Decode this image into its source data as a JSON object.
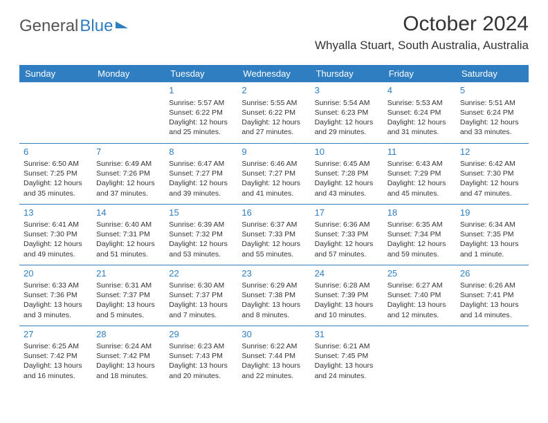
{
  "logo": {
    "text1": "General",
    "text2": "Blue"
  },
  "title": "October 2024",
  "location": "Whyalla Stuart, South Australia, Australia",
  "weekdays": [
    "Sunday",
    "Monday",
    "Tuesday",
    "Wednesday",
    "Thursday",
    "Friday",
    "Saturday"
  ],
  "colors": {
    "header_bg": "#2f7ec1",
    "header_text": "#ffffff",
    "daynum": "#2f7ec1",
    "body_text": "#333333",
    "divider": "#2f7ec1"
  },
  "weeks": [
    [
      null,
      null,
      {
        "n": "1",
        "sr": "Sunrise: 5:57 AM",
        "ss": "Sunset: 6:22 PM",
        "dl": "Daylight: 12 hours and 25 minutes."
      },
      {
        "n": "2",
        "sr": "Sunrise: 5:55 AM",
        "ss": "Sunset: 6:22 PM",
        "dl": "Daylight: 12 hours and 27 minutes."
      },
      {
        "n": "3",
        "sr": "Sunrise: 5:54 AM",
        "ss": "Sunset: 6:23 PM",
        "dl": "Daylight: 12 hours and 29 minutes."
      },
      {
        "n": "4",
        "sr": "Sunrise: 5:53 AM",
        "ss": "Sunset: 6:24 PM",
        "dl": "Daylight: 12 hours and 31 minutes."
      },
      {
        "n": "5",
        "sr": "Sunrise: 5:51 AM",
        "ss": "Sunset: 6:24 PM",
        "dl": "Daylight: 12 hours and 33 minutes."
      }
    ],
    [
      {
        "n": "6",
        "sr": "Sunrise: 6:50 AM",
        "ss": "Sunset: 7:25 PM",
        "dl": "Daylight: 12 hours and 35 minutes."
      },
      {
        "n": "7",
        "sr": "Sunrise: 6:49 AM",
        "ss": "Sunset: 7:26 PM",
        "dl": "Daylight: 12 hours and 37 minutes."
      },
      {
        "n": "8",
        "sr": "Sunrise: 6:47 AM",
        "ss": "Sunset: 7:27 PM",
        "dl": "Daylight: 12 hours and 39 minutes."
      },
      {
        "n": "9",
        "sr": "Sunrise: 6:46 AM",
        "ss": "Sunset: 7:27 PM",
        "dl": "Daylight: 12 hours and 41 minutes."
      },
      {
        "n": "10",
        "sr": "Sunrise: 6:45 AM",
        "ss": "Sunset: 7:28 PM",
        "dl": "Daylight: 12 hours and 43 minutes."
      },
      {
        "n": "11",
        "sr": "Sunrise: 6:43 AM",
        "ss": "Sunset: 7:29 PM",
        "dl": "Daylight: 12 hours and 45 minutes."
      },
      {
        "n": "12",
        "sr": "Sunrise: 6:42 AM",
        "ss": "Sunset: 7:30 PM",
        "dl": "Daylight: 12 hours and 47 minutes."
      }
    ],
    [
      {
        "n": "13",
        "sr": "Sunrise: 6:41 AM",
        "ss": "Sunset: 7:30 PM",
        "dl": "Daylight: 12 hours and 49 minutes."
      },
      {
        "n": "14",
        "sr": "Sunrise: 6:40 AM",
        "ss": "Sunset: 7:31 PM",
        "dl": "Daylight: 12 hours and 51 minutes."
      },
      {
        "n": "15",
        "sr": "Sunrise: 6:39 AM",
        "ss": "Sunset: 7:32 PM",
        "dl": "Daylight: 12 hours and 53 minutes."
      },
      {
        "n": "16",
        "sr": "Sunrise: 6:37 AM",
        "ss": "Sunset: 7:33 PM",
        "dl": "Daylight: 12 hours and 55 minutes."
      },
      {
        "n": "17",
        "sr": "Sunrise: 6:36 AM",
        "ss": "Sunset: 7:33 PM",
        "dl": "Daylight: 12 hours and 57 minutes."
      },
      {
        "n": "18",
        "sr": "Sunrise: 6:35 AM",
        "ss": "Sunset: 7:34 PM",
        "dl": "Daylight: 12 hours and 59 minutes."
      },
      {
        "n": "19",
        "sr": "Sunrise: 6:34 AM",
        "ss": "Sunset: 7:35 PM",
        "dl": "Daylight: 13 hours and 1 minute."
      }
    ],
    [
      {
        "n": "20",
        "sr": "Sunrise: 6:33 AM",
        "ss": "Sunset: 7:36 PM",
        "dl": "Daylight: 13 hours and 3 minutes."
      },
      {
        "n": "21",
        "sr": "Sunrise: 6:31 AM",
        "ss": "Sunset: 7:37 PM",
        "dl": "Daylight: 13 hours and 5 minutes."
      },
      {
        "n": "22",
        "sr": "Sunrise: 6:30 AM",
        "ss": "Sunset: 7:37 PM",
        "dl": "Daylight: 13 hours and 7 minutes."
      },
      {
        "n": "23",
        "sr": "Sunrise: 6:29 AM",
        "ss": "Sunset: 7:38 PM",
        "dl": "Daylight: 13 hours and 8 minutes."
      },
      {
        "n": "24",
        "sr": "Sunrise: 6:28 AM",
        "ss": "Sunset: 7:39 PM",
        "dl": "Daylight: 13 hours and 10 minutes."
      },
      {
        "n": "25",
        "sr": "Sunrise: 6:27 AM",
        "ss": "Sunset: 7:40 PM",
        "dl": "Daylight: 13 hours and 12 minutes."
      },
      {
        "n": "26",
        "sr": "Sunrise: 6:26 AM",
        "ss": "Sunset: 7:41 PM",
        "dl": "Daylight: 13 hours and 14 minutes."
      }
    ],
    [
      {
        "n": "27",
        "sr": "Sunrise: 6:25 AM",
        "ss": "Sunset: 7:42 PM",
        "dl": "Daylight: 13 hours and 16 minutes."
      },
      {
        "n": "28",
        "sr": "Sunrise: 6:24 AM",
        "ss": "Sunset: 7:42 PM",
        "dl": "Daylight: 13 hours and 18 minutes."
      },
      {
        "n": "29",
        "sr": "Sunrise: 6:23 AM",
        "ss": "Sunset: 7:43 PM",
        "dl": "Daylight: 13 hours and 20 minutes."
      },
      {
        "n": "30",
        "sr": "Sunrise: 6:22 AM",
        "ss": "Sunset: 7:44 PM",
        "dl": "Daylight: 13 hours and 22 minutes."
      },
      {
        "n": "31",
        "sr": "Sunrise: 6:21 AM",
        "ss": "Sunset: 7:45 PM",
        "dl": "Daylight: 13 hours and 24 minutes."
      },
      null,
      null
    ]
  ]
}
